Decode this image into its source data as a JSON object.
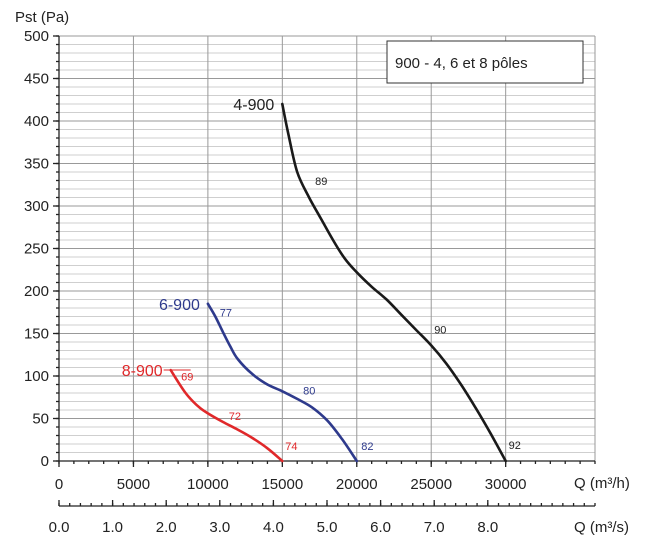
{
  "chart_data": {
    "type": "line",
    "ylabel": "Pst (Pa)",
    "xlabel": "Q (m³/h)",
    "xlabel_secondary": "Q (m³/s)",
    "xlim": [
      0,
      36000
    ],
    "ylim": [
      0,
      500
    ],
    "grid": true,
    "x_ticks": [
      0,
      5000,
      10000,
      15000,
      20000,
      25000,
      30000
    ],
    "x_tick_labels": [
      "0",
      "5000",
      "10000",
      "15000",
      "20000",
      "25000",
      "30000"
    ],
    "y_ticks": [
      0,
      50,
      100,
      150,
      200,
      250,
      300,
      350,
      400,
      450,
      500
    ],
    "y_tick_labels": [
      "0",
      "50",
      "100",
      "150",
      "200",
      "250",
      "300",
      "350",
      "400",
      "450",
      "500"
    ],
    "secondary_x_ticks": [
      0.0,
      1.0,
      2.0,
      3.0,
      4.0,
      5.0,
      6.0,
      7.0,
      8.0
    ],
    "secondary_x_tick_labels": [
      "0.0",
      "1.0",
      "2.0",
      "3.0",
      "4.0",
      "5.0",
      "6.0",
      "7.0",
      "8.0"
    ],
    "legend_box": "900 - 4, 6 et 8 pôles",
    "series": [
      {
        "name": "4-900",
        "color": "#1a1a1a",
        "x": [
          15000,
          15400,
          16000,
          16800,
          17600,
          18400,
          19200,
          20000,
          21000,
          22000,
          23000,
          24000,
          25000,
          26000,
          27000,
          28000,
          29000,
          30000
        ],
        "y": [
          420,
          385,
          340,
          310,
          285,
          260,
          238,
          222,
          205,
          190,
          172,
          154,
          136,
          115,
          90,
          62,
          32,
          0
        ],
        "efficiency_labels": [
          {
            "x": 17200,
            "y": 325,
            "text": "89"
          },
          {
            "x": 25200,
            "y": 150,
            "text": "90"
          },
          {
            "x": 30200,
            "y": 14,
            "text": "92"
          }
        ]
      },
      {
        "name": "6-900",
        "color": "#2e3a8c",
        "x": [
          10000,
          10500,
          11000,
          11500,
          12000,
          13000,
          14000,
          15000,
          16000,
          17000,
          18000,
          19000,
          20000
        ],
        "y": [
          185,
          170,
          152,
          135,
          120,
          102,
          90,
          82,
          73,
          63,
          48,
          26,
          0
        ],
        "efficiency_labels": [
          {
            "x": 10800,
            "y": 170,
            "text": "77"
          },
          {
            "x": 16400,
            "y": 78,
            "text": "80"
          },
          {
            "x": 20300,
            "y": 13,
            "text": "82"
          }
        ]
      },
      {
        "name": "8-900",
        "color": "#e0282a",
        "x": [
          7500,
          8000,
          8500,
          9000,
          9500,
          10000,
          11000,
          12000,
          13000,
          14000,
          15000
        ],
        "y": [
          107,
          93,
          80,
          70,
          62,
          56,
          46,
          37,
          27,
          15,
          0
        ],
        "efficiency_labels": [
          {
            "x": 8200,
            "y": 95,
            "text": "69"
          },
          {
            "x": 11400,
            "y": 48,
            "text": "72"
          },
          {
            "x": 15200,
            "y": 13,
            "text": "74"
          }
        ]
      }
    ]
  }
}
